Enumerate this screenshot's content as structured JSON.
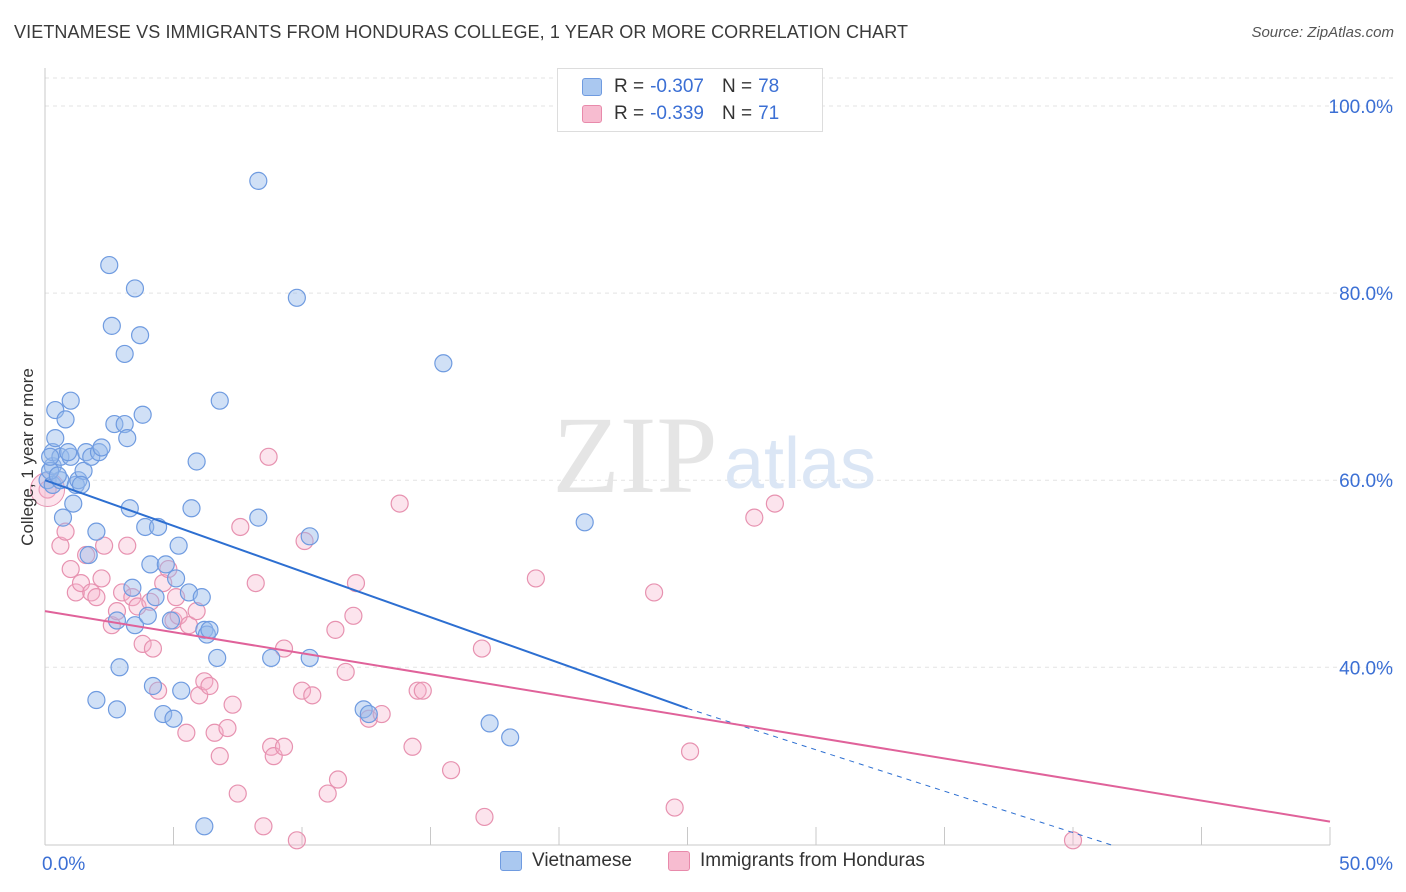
{
  "header": {
    "title": "VIETNAMESE VS IMMIGRANTS FROM HONDURAS COLLEGE, 1 YEAR OR MORE CORRELATION CHART",
    "source": "Source: ZipAtlas.com"
  },
  "watermark": {
    "zip": "ZIP",
    "atlas": "atlas"
  },
  "legend": {
    "series": [
      {
        "name": "Vietnamese",
        "r_label": "R =",
        "r_value": "-0.307",
        "n_label": "N =",
        "n_value": "78",
        "fill": "#aac8f0",
        "stroke": "#6f9be0"
      },
      {
        "name": "Immigrants from Honduras",
        "r_label": "R =",
        "r_value": "-0.339",
        "n_label": "N =",
        "n_value": "71",
        "fill": "#f7bcd0",
        "stroke": "#e88aab"
      }
    ]
  },
  "colors": {
    "blue_dot_fill": "rgba(150,186,236,0.45)",
    "blue_dot_stroke": "#6f9be0",
    "pink_dot_fill": "rgba(246,178,202,0.35)",
    "pink_dot_stroke": "#e792b0",
    "blue_line": "#2d6fd1",
    "pink_line": "#e0629a",
    "axis_label": "#3b6fd4",
    "grid": "#e3e3e3"
  },
  "chart_data": {
    "type": "scatter",
    "title": "VIETNAMESE VS IMMIGRANTS FROM HONDURAS COLLEGE, 1 YEAR OR MORE CORRELATION CHART",
    "xlabel": "",
    "ylabel": "College, 1 year or more",
    "xlim": [
      0,
      50
    ],
    "ylim": [
      21,
      103
    ],
    "x_tick_labels": [
      "0.0%",
      "50.0%"
    ],
    "y_ticks": [
      40,
      60,
      80,
      100
    ],
    "y_tick_labels": [
      "40.0%",
      "60.0%",
      "80.0%",
      "100.0%"
    ],
    "series": [
      {
        "name": "Vietnamese",
        "points": [
          [
            0.1,
            60.0
          ],
          [
            0.3,
            59.5
          ],
          [
            0.3,
            61.5
          ],
          [
            0.3,
            63.0
          ],
          [
            0.4,
            64.5
          ],
          [
            0.4,
            67.5
          ],
          [
            0.6,
            62.5
          ],
          [
            0.6,
            60.0
          ],
          [
            0.7,
            56.0
          ],
          [
            0.8,
            66.5
          ],
          [
            1.0,
            68.5
          ],
          [
            1.0,
            62.5
          ],
          [
            1.1,
            57.5
          ],
          [
            1.2,
            59.5
          ],
          [
            1.3,
            60.0
          ],
          [
            1.5,
            61.0
          ],
          [
            1.6,
            63.0
          ],
          [
            1.7,
            52.0
          ],
          [
            1.8,
            62.5
          ],
          [
            2.0,
            54.5
          ],
          [
            2.0,
            36.5
          ],
          [
            2.1,
            63.0
          ],
          [
            2.5,
            83.0
          ],
          [
            2.6,
            76.5
          ],
          [
            2.7,
            66.0
          ],
          [
            2.8,
            45.0
          ],
          [
            2.8,
            35.5
          ],
          [
            2.9,
            40.0
          ],
          [
            3.1,
            73.5
          ],
          [
            3.1,
            66.0
          ],
          [
            3.2,
            64.5
          ],
          [
            3.3,
            57.0
          ],
          [
            3.4,
            48.5
          ],
          [
            3.5,
            44.5
          ],
          [
            3.5,
            80.5
          ],
          [
            3.7,
            75.5
          ],
          [
            3.8,
            67.0
          ],
          [
            3.9,
            55.0
          ],
          [
            4.1,
            51.0
          ],
          [
            4.2,
            38.0
          ],
          [
            4.3,
            47.5
          ],
          [
            4.4,
            55.0
          ],
          [
            4.6,
            35.0
          ],
          [
            4.7,
            51.0
          ],
          [
            4.9,
            45.0
          ],
          [
            5.0,
            34.5
          ],
          [
            5.1,
            49.5
          ],
          [
            5.2,
            53.0
          ],
          [
            5.3,
            37.5
          ],
          [
            5.6,
            48.0
          ],
          [
            5.7,
            57.0
          ],
          [
            5.9,
            62.0
          ],
          [
            6.1,
            47.5
          ],
          [
            6.2,
            44.0
          ],
          [
            6.3,
            43.5
          ],
          [
            6.4,
            44.0
          ],
          [
            6.2,
            23.0
          ],
          [
            6.7,
            41.0
          ],
          [
            6.8,
            68.5
          ],
          [
            8.3,
            92.0
          ],
          [
            8.3,
            56.0
          ],
          [
            8.8,
            41.0
          ],
          [
            9.8,
            79.5
          ],
          [
            10.3,
            41.0
          ],
          [
            10.3,
            54.0
          ],
          [
            12.4,
            35.5
          ],
          [
            12.6,
            35.0
          ],
          [
            15.5,
            72.5
          ],
          [
            17.3,
            34.0
          ],
          [
            18.1,
            32.5
          ],
          [
            21.0,
            55.5
          ],
          [
            0.2,
            61.0
          ],
          [
            0.5,
            60.5
          ],
          [
            0.9,
            63.0
          ],
          [
            1.4,
            59.5
          ],
          [
            2.2,
            63.5
          ],
          [
            4.0,
            45.5
          ],
          [
            0.2,
            62.5
          ]
        ],
        "trend": {
          "x_start": 0.0,
          "y_start": 60.0,
          "x_solid_end": 25.0,
          "y_solid_end": 35.6,
          "x_dash_end": 41.5,
          "y_dash_end": 21.0
        }
      },
      {
        "name": "Immigrants from Honduras",
        "points": [
          [
            0.1,
            59.0
          ],
          [
            0.6,
            53.0
          ],
          [
            0.8,
            54.5
          ],
          [
            1.0,
            50.5
          ],
          [
            1.2,
            48.0
          ],
          [
            1.4,
            49.0
          ],
          [
            1.6,
            52.0
          ],
          [
            1.8,
            48.0
          ],
          [
            2.0,
            47.5
          ],
          [
            2.2,
            49.5
          ],
          [
            2.3,
            53.0
          ],
          [
            2.6,
            44.5
          ],
          [
            2.8,
            46.0
          ],
          [
            3.0,
            48.0
          ],
          [
            3.2,
            53.0
          ],
          [
            3.4,
            47.5
          ],
          [
            3.6,
            46.5
          ],
          [
            3.8,
            42.5
          ],
          [
            4.1,
            47.0
          ],
          [
            4.2,
            42.0
          ],
          [
            4.4,
            37.5
          ],
          [
            4.6,
            49.0
          ],
          [
            4.8,
            50.5
          ],
          [
            5.0,
            45.0
          ],
          [
            5.1,
            47.5
          ],
          [
            5.2,
            45.5
          ],
          [
            5.5,
            33.0
          ],
          [
            5.6,
            44.5
          ],
          [
            5.9,
            46.0
          ],
          [
            6.0,
            37.0
          ],
          [
            6.2,
            38.5
          ],
          [
            6.4,
            38.0
          ],
          [
            6.6,
            33.0
          ],
          [
            6.8,
            30.5
          ],
          [
            7.1,
            33.5
          ],
          [
            7.3,
            36.0
          ],
          [
            7.5,
            26.5
          ],
          [
            7.6,
            55.0
          ],
          [
            8.2,
            49.0
          ],
          [
            8.5,
            23.0
          ],
          [
            8.7,
            62.5
          ],
          [
            8.8,
            31.5
          ],
          [
            8.9,
            30.5
          ],
          [
            9.3,
            31.5
          ],
          [
            9.3,
            42.0
          ],
          [
            9.8,
            21.5
          ],
          [
            10.0,
            37.5
          ],
          [
            10.1,
            53.5
          ],
          [
            10.4,
            37.0
          ],
          [
            11.0,
            26.5
          ],
          [
            11.3,
            44.0
          ],
          [
            11.4,
            28.0
          ],
          [
            11.7,
            39.5
          ],
          [
            12.0,
            45.5
          ],
          [
            12.1,
            49.0
          ],
          [
            12.6,
            34.5
          ],
          [
            13.1,
            35.0
          ],
          [
            13.8,
            57.5
          ],
          [
            14.3,
            31.5
          ],
          [
            14.5,
            37.5
          ],
          [
            14.7,
            37.5
          ],
          [
            15.8,
            29.0
          ],
          [
            17.0,
            42.0
          ],
          [
            17.1,
            24.0
          ],
          [
            19.1,
            49.5
          ],
          [
            23.7,
            48.0
          ],
          [
            24.5,
            25.0
          ],
          [
            25.1,
            31.0
          ],
          [
            27.6,
            56.0
          ],
          [
            28.4,
            57.5
          ],
          [
            40.0,
            21.5
          ]
        ],
        "trend": {
          "x_start": 0.0,
          "y_start": 46.0,
          "x_end": 50.0,
          "y_end": 23.5
        }
      }
    ]
  }
}
